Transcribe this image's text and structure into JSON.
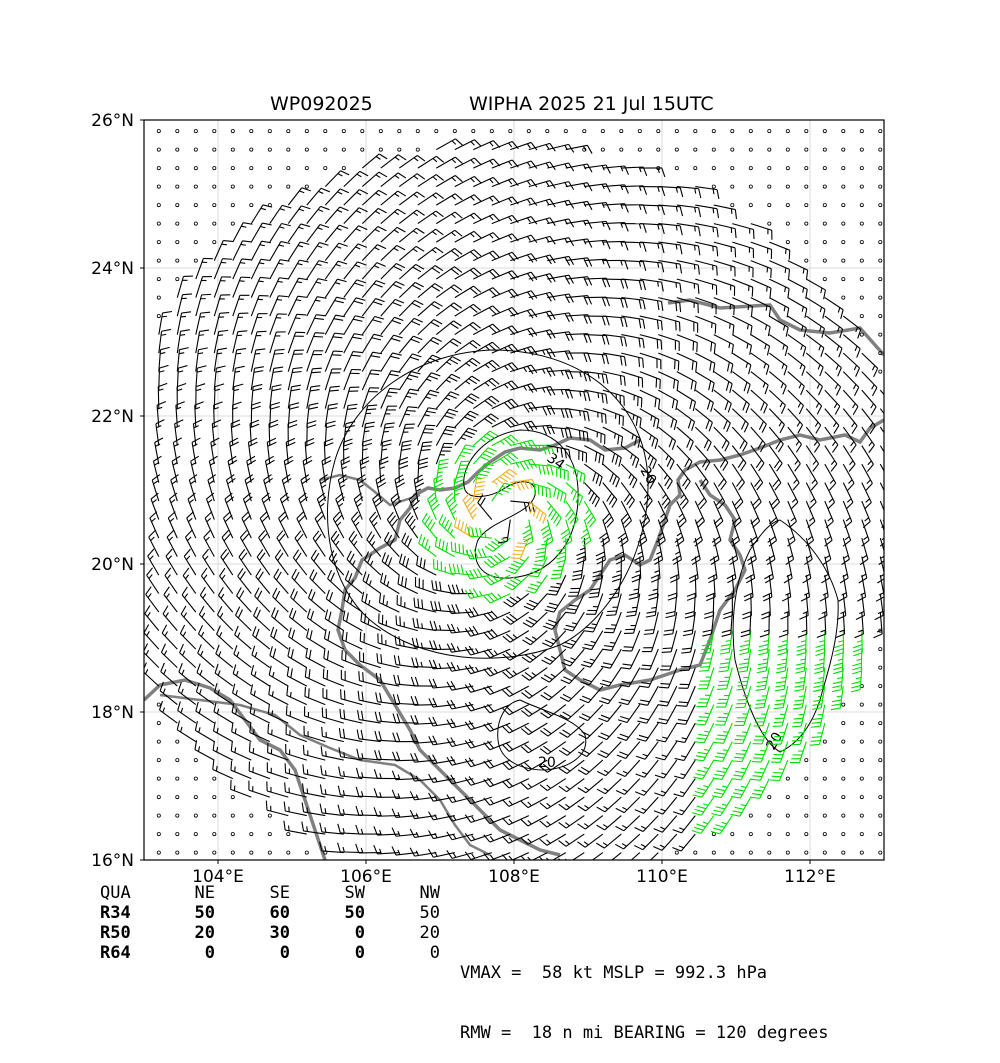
{
  "title_left": "WP092025",
  "title_right": "WIPHA 2025 21 Jul 15UTC",
  "chart_data": {
    "type": "wind-barb-map",
    "lon_range": [
      103,
      113
    ],
    "lat_range": [
      16,
      26
    ],
    "x_ticks": [
      "104°E",
      "106°E",
      "108°E",
      "110°E",
      "112°E"
    ],
    "y_ticks": [
      "16°N",
      "18°N",
      "20°N",
      "22°N",
      "24°N",
      "26°N"
    ],
    "grid": true,
    "storm_center": {
      "lon": 107.85,
      "lat": 20.65
    },
    "contour_labels": [
      "34",
      "20",
      "20",
      "20"
    ],
    "barb_colors": {
      "below_34kt": "#000000",
      "34_to_50kt": "#00e000",
      "50_to_64kt": "#f0b020"
    },
    "coast_color": "#808080"
  },
  "radii_table": {
    "header": [
      "QUA",
      "NE",
      "SE",
      "SW",
      "NW"
    ],
    "rows": [
      [
        "R34",
        "50",
        "60",
        "50",
        "50"
      ],
      [
        "R50",
        "20",
        "30",
        "0",
        "20"
      ],
      [
        "R64",
        "0",
        "0",
        "0",
        "0"
      ]
    ]
  },
  "stats": {
    "line1": "VMAX =  58 kt MSLP = 992.3 hPa",
    "line2": "RMW =  18 n mi BEARING = 120 degrees"
  }
}
